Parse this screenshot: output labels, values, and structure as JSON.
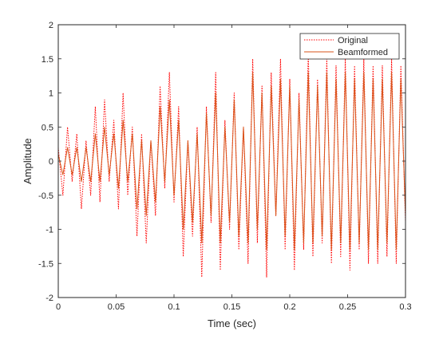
{
  "chart_data": {
    "type": "line",
    "title": "",
    "xlabel": "Time (sec)",
    "ylabel": "Amplitude",
    "xlim": [
      0,
      0.3
    ],
    "ylim": [
      -2,
      2
    ],
    "xticks": [
      0,
      0.05,
      0.1,
      0.15,
      0.2,
      0.25,
      0.3
    ],
    "yticks": [
      -2,
      -1.5,
      -1,
      -0.5,
      0,
      0.5,
      1,
      1.5,
      2
    ],
    "xtick_labels": [
      "0",
      "0.05",
      "0.1",
      "0.15",
      "0.2",
      "0.25",
      "0.3"
    ],
    "ytick_labels": [
      "-2",
      "-1.5",
      "-1",
      "-0.5",
      "0",
      "0.5",
      "1",
      "1.5",
      "2"
    ],
    "grid": false,
    "legend_position": "top-right",
    "series": [
      {
        "name": "Original",
        "color": "#ff0000",
        "style": "dotted",
        "x": [
          0,
          0.004,
          0.008,
          0.012,
          0.016,
          0.02,
          0.024,
          0.028,
          0.032,
          0.036,
          0.04,
          0.044,
          0.048,
          0.052,
          0.056,
          0.06,
          0.064,
          0.068,
          0.072,
          0.076,
          0.08,
          0.084,
          0.088,
          0.092,
          0.096,
          0.1,
          0.104,
          0.108,
          0.112,
          0.116,
          0.12,
          0.124,
          0.128,
          0.132,
          0.136,
          0.14,
          0.144,
          0.148,
          0.152,
          0.156,
          0.16,
          0.164,
          0.168,
          0.172,
          0.176,
          0.18,
          0.184,
          0.188,
          0.192,
          0.196,
          0.2,
          0.204,
          0.208,
          0.212,
          0.216,
          0.22,
          0.224,
          0.228,
          0.232,
          0.236,
          0.24,
          0.244,
          0.248,
          0.252,
          0.256,
          0.26,
          0.264,
          0.268,
          0.272,
          0.276,
          0.28,
          0.284,
          0.288,
          0.292,
          0.296,
          0.3
        ],
        "y": [
          0.2,
          -0.5,
          0.5,
          -0.3,
          0.4,
          -0.7,
          0.3,
          -0.5,
          0.8,
          -0.6,
          0.9,
          -0.3,
          0.6,
          -0.7,
          1.0,
          -0.5,
          0.5,
          -1.1,
          0.4,
          -1.2,
          0.3,
          -0.8,
          1.1,
          -0.4,
          1.3,
          -0.6,
          0.8,
          -1.4,
          0.3,
          -1.1,
          0.5,
          -1.7,
          0.8,
          -0.9,
          1.3,
          -1.6,
          0.6,
          -1.0,
          1.0,
          -1.3,
          0.5,
          -1.5,
          1.5,
          -1.2,
          1.1,
          -1.7,
          1.3,
          -0.8,
          1.5,
          -1.3,
          1.2,
          -1.6,
          1.0,
          -1.3,
          1.6,
          -1.4,
          1.2,
          -1.2,
          1.5,
          -1.5,
          1.4,
          -1.4,
          1.5,
          -1.6,
          1.4,
          -1.3,
          1.5,
          -1.5,
          1.4,
          -1.5,
          1.4,
          -1.4,
          1.5,
          -1.5,
          1.4,
          -0.9
        ]
      },
      {
        "name": "Beamformed",
        "color": "#d95319",
        "style": "solid",
        "x": [
          0,
          0.004,
          0.008,
          0.012,
          0.016,
          0.02,
          0.024,
          0.028,
          0.032,
          0.036,
          0.04,
          0.044,
          0.048,
          0.052,
          0.056,
          0.06,
          0.064,
          0.068,
          0.072,
          0.076,
          0.08,
          0.084,
          0.088,
          0.092,
          0.096,
          0.1,
          0.104,
          0.108,
          0.112,
          0.116,
          0.12,
          0.124,
          0.128,
          0.132,
          0.136,
          0.14,
          0.144,
          0.148,
          0.152,
          0.156,
          0.16,
          0.164,
          0.168,
          0.172,
          0.176,
          0.18,
          0.184,
          0.188,
          0.192,
          0.196,
          0.2,
          0.204,
          0.208,
          0.212,
          0.216,
          0.22,
          0.224,
          0.228,
          0.232,
          0.236,
          0.24,
          0.244,
          0.248,
          0.252,
          0.256,
          0.26,
          0.264,
          0.268,
          0.272,
          0.276,
          0.28,
          0.284,
          0.288,
          0.292,
          0.296,
          0.3
        ],
        "y": [
          0.1,
          -0.2,
          0.2,
          -0.2,
          0.2,
          -0.3,
          0.2,
          -0.3,
          0.4,
          -0.3,
          0.5,
          -0.2,
          0.4,
          -0.4,
          0.6,
          -0.3,
          0.4,
          -0.7,
          0.3,
          -0.8,
          0.3,
          -0.6,
          0.8,
          -0.3,
          0.9,
          -0.5,
          0.6,
          -1.0,
          0.3,
          -0.9,
          0.4,
          -1.2,
          0.7,
          -0.8,
          1.0,
          -1.2,
          0.5,
          -0.9,
          0.9,
          -1.1,
          0.5,
          -1.2,
          1.3,
          -1.0,
          1.0,
          -1.3,
          1.1,
          -0.8,
          1.2,
          -1.1,
          1.1,
          -1.3,
          0.9,
          -1.2,
          1.3,
          -1.2,
          1.1,
          -1.1,
          1.3,
          -1.3,
          1.2,
          -1.2,
          1.3,
          -1.3,
          1.2,
          -1.2,
          1.3,
          -1.3,
          1.2,
          -1.3,
          1.2,
          -1.2,
          1.3,
          -1.3,
          1.2,
          -0.8
        ]
      }
    ]
  }
}
